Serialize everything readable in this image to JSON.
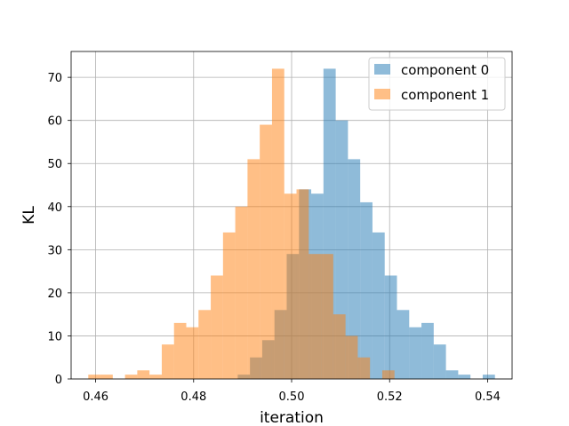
{
  "chart_data": {
    "type": "histogram",
    "xlabel": "iteration",
    "ylabel": "KL",
    "xlim": [
      0.455,
      0.545
    ],
    "ylim": [
      0,
      76
    ],
    "xticks": [
      0.46,
      0.48,
      0.5,
      0.52,
      0.54
    ],
    "xtick_labels": [
      "0.46",
      "0.48",
      "0.50",
      "0.52",
      "0.54"
    ],
    "yticks": [
      0,
      10,
      20,
      30,
      40,
      50,
      60,
      70
    ],
    "ytick_labels": [
      "0",
      "10",
      "20",
      "30",
      "40",
      "50",
      "60",
      "70"
    ],
    "grid": true,
    "legend_position": "top-right",
    "series": [
      {
        "name": "component 0",
        "color": "#1f77b4",
        "opacity": 0.5,
        "bins": [
          {
            "x0": 0.489,
            "x1": 0.4915,
            "count": 1
          },
          {
            "x0": 0.4915,
            "x1": 0.494,
            "count": 5
          },
          {
            "x0": 0.494,
            "x1": 0.4965,
            "count": 9
          },
          {
            "x0": 0.4965,
            "x1": 0.499,
            "count": 16
          },
          {
            "x0": 0.499,
            "x1": 0.5015,
            "count": 29
          },
          {
            "x0": 0.5015,
            "x1": 0.504,
            "count": 44
          },
          {
            "x0": 0.504,
            "x1": 0.5065,
            "count": 43
          },
          {
            "x0": 0.5065,
            "x1": 0.509,
            "count": 72
          },
          {
            "x0": 0.509,
            "x1": 0.5115,
            "count": 60
          },
          {
            "x0": 0.5115,
            "x1": 0.514,
            "count": 51
          },
          {
            "x0": 0.514,
            "x1": 0.5165,
            "count": 41
          },
          {
            "x0": 0.5165,
            "x1": 0.519,
            "count": 34
          },
          {
            "x0": 0.519,
            "x1": 0.5215,
            "count": 24
          },
          {
            "x0": 0.5215,
            "x1": 0.524,
            "count": 16
          },
          {
            "x0": 0.524,
            "x1": 0.5265,
            "count": 12
          },
          {
            "x0": 0.5265,
            "x1": 0.529,
            "count": 13
          },
          {
            "x0": 0.529,
            "x1": 0.5315,
            "count": 8
          },
          {
            "x0": 0.5315,
            "x1": 0.534,
            "count": 2
          },
          {
            "x0": 0.534,
            "x1": 0.5365,
            "count": 1
          },
          {
            "x0": 0.5365,
            "x1": 0.539,
            "count": 0
          },
          {
            "x0": 0.539,
            "x1": 0.5415,
            "count": 1
          }
        ]
      },
      {
        "name": "component 1",
        "color": "#ff7f0e",
        "opacity": 0.5,
        "bins": [
          {
            "x0": 0.4585,
            "x1": 0.461,
            "count": 1
          },
          {
            "x0": 0.461,
            "x1": 0.4635,
            "count": 1
          },
          {
            "x0": 0.4635,
            "x1": 0.466,
            "count": 0
          },
          {
            "x0": 0.466,
            "x1": 0.4685,
            "count": 1
          },
          {
            "x0": 0.4685,
            "x1": 0.471,
            "count": 2
          },
          {
            "x0": 0.471,
            "x1": 0.4735,
            "count": 1
          },
          {
            "x0": 0.4735,
            "x1": 0.476,
            "count": 8
          },
          {
            "x0": 0.476,
            "x1": 0.4785,
            "count": 13
          },
          {
            "x0": 0.4785,
            "x1": 0.481,
            "count": 12
          },
          {
            "x0": 0.481,
            "x1": 0.4835,
            "count": 16
          },
          {
            "x0": 0.4835,
            "x1": 0.486,
            "count": 24
          },
          {
            "x0": 0.486,
            "x1": 0.4885,
            "count": 34
          },
          {
            "x0": 0.4885,
            "x1": 0.491,
            "count": 40
          },
          {
            "x0": 0.491,
            "x1": 0.4935,
            "count": 51
          },
          {
            "x0": 0.4935,
            "x1": 0.496,
            "count": 59
          },
          {
            "x0": 0.496,
            "x1": 0.4985,
            "count": 72
          },
          {
            "x0": 0.4985,
            "x1": 0.501,
            "count": 43
          },
          {
            "x0": 0.501,
            "x1": 0.5035,
            "count": 44
          },
          {
            "x0": 0.5035,
            "x1": 0.506,
            "count": 29
          },
          {
            "x0": 0.506,
            "x1": 0.5085,
            "count": 29
          },
          {
            "x0": 0.5085,
            "x1": 0.511,
            "count": 15
          },
          {
            "x0": 0.511,
            "x1": 0.5135,
            "count": 10
          },
          {
            "x0": 0.5135,
            "x1": 0.516,
            "count": 5
          },
          {
            "x0": 0.516,
            "x1": 0.5185,
            "count": 0
          },
          {
            "x0": 0.5185,
            "x1": 0.521,
            "count": 2
          }
        ]
      }
    ]
  }
}
